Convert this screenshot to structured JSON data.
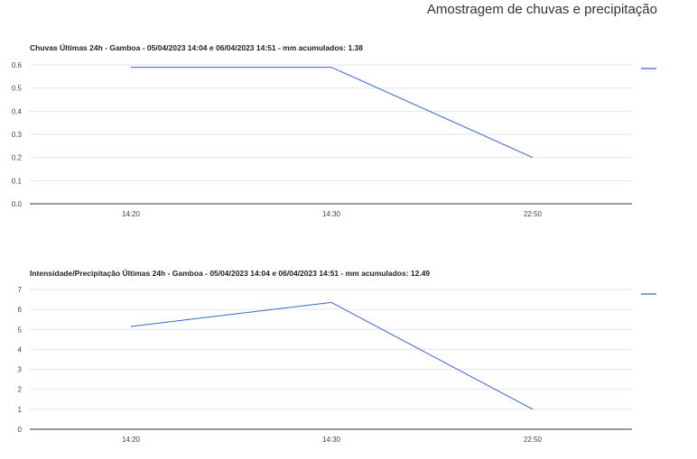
{
  "page": {
    "title": "Amostragem de chuvas e precipitação"
  },
  "chart_data": [
    {
      "type": "line",
      "title": "Chuvas Últimas 24h - Gamboa - 05/04/2023 14:04 e 06/04/2023 14:51 - mm acumulados: 1.38",
      "categories": [
        "14:20",
        "14:30",
        "22:50"
      ],
      "series": [
        {
          "values": [
            0.59,
            0.59,
            0.2
          ],
          "color": "#3b66c5"
        }
      ],
      "yticks": [
        "0.0",
        "0.1",
        "0.2",
        "0.3",
        "0.4",
        "0.5",
        "0.6"
      ],
      "ylim": [
        0,
        0.6
      ],
      "grid": true,
      "legend": "right"
    },
    {
      "type": "line",
      "title": "Intensidade/Precipitação Últimas 24h - Gamboa - 05/04/2023 14:04 e 06/04/2023 14:51 - mm acumulados: 12.49",
      "categories": [
        "14:20",
        "14:30",
        "22:50"
      ],
      "series": [
        {
          "values": [
            5.15,
            6.35,
            1.0
          ],
          "color": "#3b66c5"
        }
      ],
      "yticks": [
        "0",
        "1",
        "2",
        "3",
        "4",
        "5",
        "6",
        "7"
      ],
      "ylim": [
        0,
        7
      ],
      "grid": true,
      "legend": "right"
    }
  ]
}
